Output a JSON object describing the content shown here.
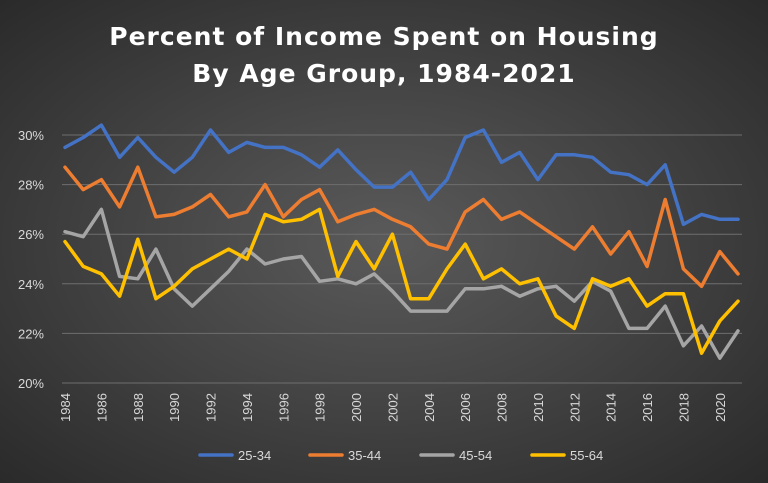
{
  "chart_data": {
    "type": "line",
    "title": "Percent of Income Spent on Housing",
    "subtitle": "By Age Group, 1984-2021",
    "xlabel": "",
    "ylabel": "",
    "ylim": [
      20,
      30
    ],
    "yticks": [
      "20%",
      "22%",
      "24%",
      "26%",
      "28%",
      "30%"
    ],
    "xticks": [
      "1984",
      "1986",
      "1988",
      "1990",
      "1992",
      "1994",
      "1996",
      "1998",
      "2000",
      "2002",
      "2004",
      "2006",
      "2008",
      "2010",
      "2012",
      "2014",
      "2016",
      "2018",
      "2020"
    ],
    "grid": "horizontal",
    "legend_position": "bottom",
    "x": [
      1984,
      1985,
      1986,
      1987,
      1988,
      1989,
      1990,
      1991,
      1992,
      1993,
      1994,
      1995,
      1996,
      1997,
      1998,
      1999,
      2000,
      2001,
      2002,
      2003,
      2004,
      2005,
      2006,
      2007,
      2008,
      2009,
      2010,
      2011,
      2012,
      2013,
      2014,
      2015,
      2016,
      2017,
      2018,
      2019,
      2020,
      2021
    ],
    "series": [
      {
        "name": "25-34",
        "color": "#4472c4",
        "values": [
          29.5,
          29.9,
          30.4,
          29.1,
          29.9,
          29.1,
          28.5,
          29.1,
          30.2,
          29.3,
          29.7,
          29.5,
          29.5,
          29.2,
          28.7,
          29.4,
          28.6,
          27.9,
          27.9,
          28.5,
          27.4,
          28.2,
          29.9,
          30.2,
          28.9,
          29.3,
          28.2,
          29.2,
          29.2,
          29.1,
          28.5,
          28.4,
          28.0,
          28.8,
          26.4,
          26.8,
          26.6,
          26.6
        ]
      },
      {
        "name": "35-44",
        "color": "#ed7d31",
        "values": [
          28.7,
          27.8,
          28.2,
          27.1,
          28.7,
          26.7,
          26.8,
          27.1,
          27.6,
          26.7,
          26.9,
          28.0,
          26.7,
          27.4,
          27.8,
          26.5,
          26.8,
          27.0,
          26.6,
          26.3,
          25.6,
          25.4,
          26.9,
          27.4,
          26.6,
          26.9,
          26.4,
          25.9,
          25.4,
          26.3,
          25.2,
          26.1,
          24.7,
          27.4,
          24.6,
          23.9,
          25.3,
          24.4
        ]
      },
      {
        "name": "45-54",
        "color": "#a5a5a5",
        "values": [
          26.1,
          25.9,
          27.0,
          24.3,
          24.2,
          25.4,
          23.8,
          23.1,
          23.8,
          24.5,
          25.4,
          24.8,
          25.0,
          25.1,
          24.1,
          24.2,
          24.0,
          24.4,
          23.7,
          22.9,
          22.9,
          22.9,
          23.8,
          23.8,
          23.9,
          23.5,
          23.8,
          23.9,
          23.3,
          24.1,
          23.7,
          22.2,
          22.2,
          23.1,
          21.5,
          22.3,
          21.0,
          22.1
        ]
      },
      {
        "name": "55-64",
        "color": "#ffc000",
        "values": [
          25.7,
          24.7,
          24.4,
          23.5,
          25.8,
          23.4,
          23.9,
          24.6,
          25.0,
          25.4,
          25.0,
          26.8,
          26.5,
          26.6,
          27.0,
          24.3,
          25.7,
          24.6,
          26.0,
          23.4,
          23.4,
          24.6,
          25.6,
          24.2,
          24.6,
          24.0,
          24.2,
          22.7,
          22.2,
          24.2,
          23.9,
          24.2,
          23.1,
          23.6,
          23.6,
          21.2,
          22.5,
          23.3
        ]
      }
    ]
  }
}
